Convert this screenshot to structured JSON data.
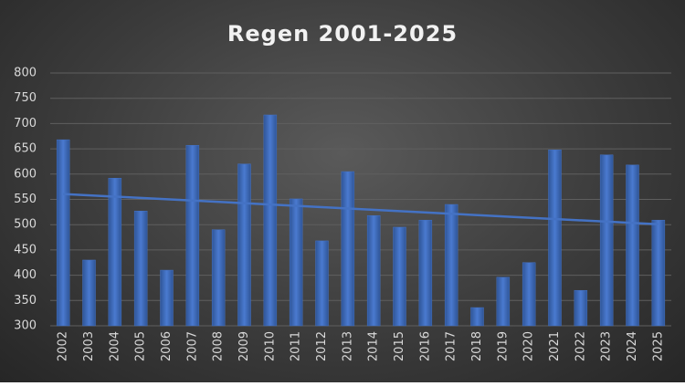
{
  "chart_data": {
    "type": "bar",
    "title": "Regen 2001-2025",
    "categories": [
      "2002",
      "2003",
      "2004",
      "2005",
      "2006",
      "2007",
      "2008",
      "2009",
      "2010",
      "2011",
      "2012",
      "2013",
      "2014",
      "2015",
      "2016",
      "2017",
      "2018",
      "2019",
      "2020",
      "2021",
      "2022",
      "2023",
      "2024",
      "2025"
    ],
    "values": [
      668,
      430,
      592,
      527,
      410,
      657,
      490,
      620,
      717,
      551,
      468,
      605,
      518,
      495,
      509,
      540,
      336,
      396,
      425,
      648,
      370,
      638,
      618,
      509
    ],
    "color": "#4472c4",
    "trendline": "linear",
    "trendline_color": "#4472c4",
    "ylim": [
      300,
      800
    ],
    "yticks": [
      300,
      350,
      400,
      450,
      500,
      550,
      600,
      650,
      700,
      750,
      800
    ],
    "grid": true
  }
}
